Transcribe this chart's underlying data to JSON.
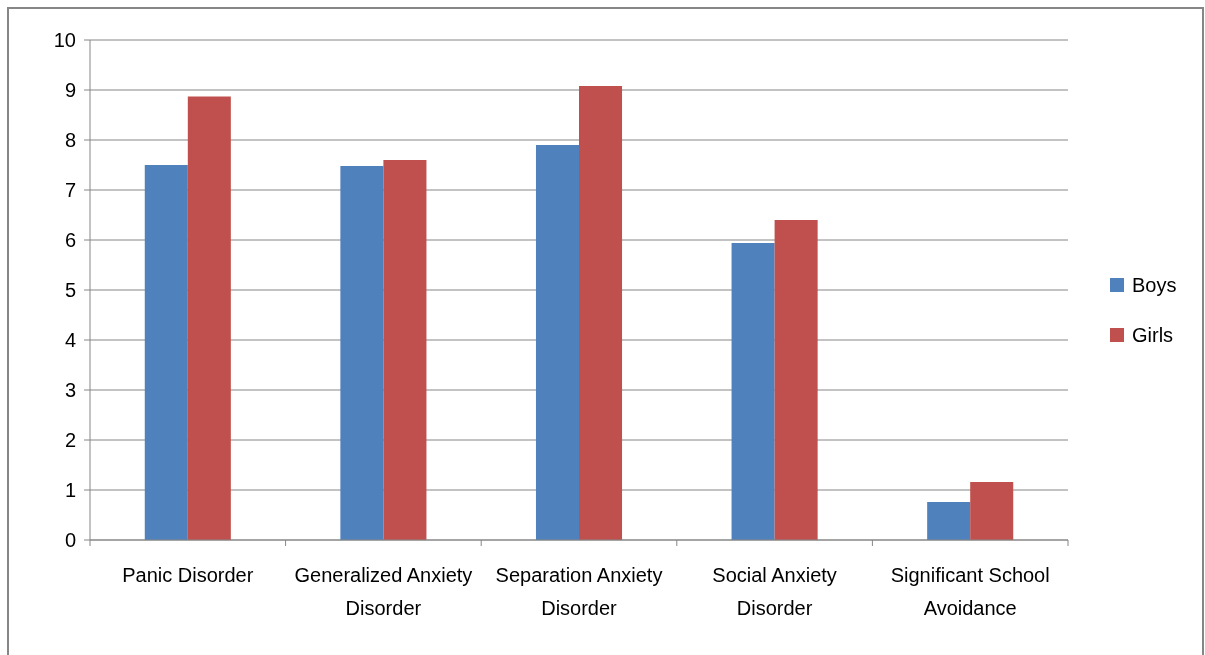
{
  "chart_data": {
    "type": "bar",
    "categories": [
      "Panic Disorder",
      "Generalized Anxiety Disorder",
      "Separation Anxiety Disorder",
      "Social Anxiety Disorder",
      "Significant School Avoidance"
    ],
    "series": [
      {
        "name": "Boys",
        "color": "#4f81bd",
        "values": [
          7.5,
          7.48,
          7.9,
          5.94,
          0.76
        ]
      },
      {
        "name": "Girls",
        "color": "#c0504d",
        "values": [
          8.87,
          7.6,
          9.08,
          6.4,
          1.16
        ]
      }
    ],
    "ylim": [
      0,
      10
    ],
    "yticks": [
      0,
      1,
      2,
      3,
      4,
      5,
      6,
      7,
      8,
      9,
      10
    ],
    "grid": "y",
    "legend": "right"
  }
}
